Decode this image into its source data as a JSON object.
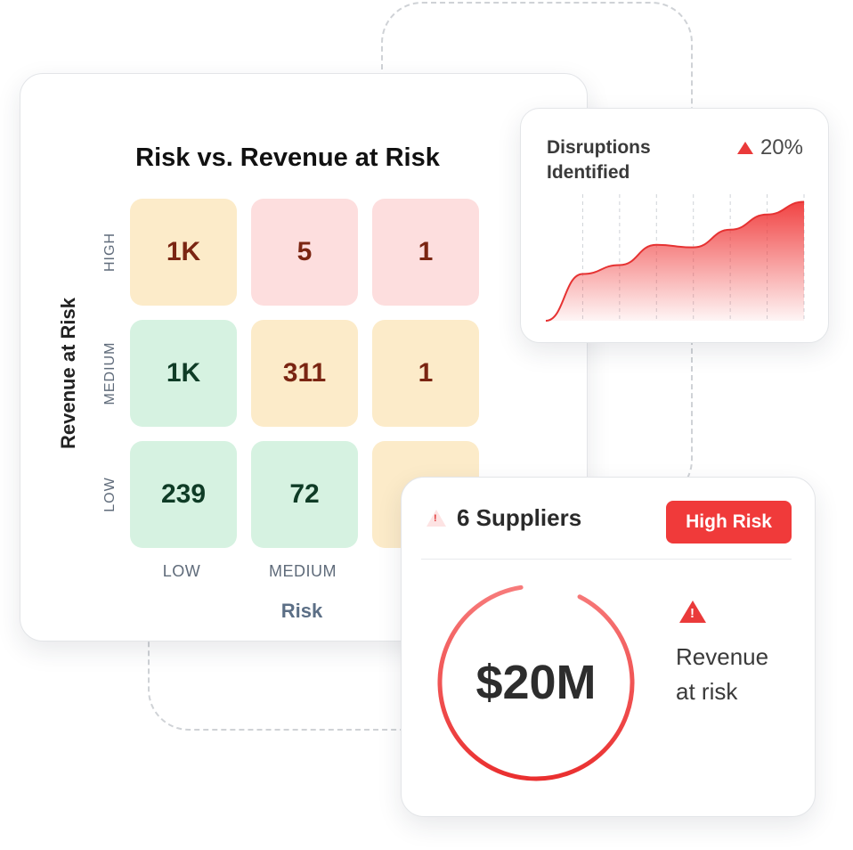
{
  "matrix": {
    "title": "Risk vs. Revenue at Risk",
    "y_axis_title": "Revenue at Risk",
    "x_axis_title": "Risk",
    "row_labels": [
      "HIGH",
      "MEDIUM",
      "LOW"
    ],
    "col_labels": [
      "LOW",
      "MEDIUM",
      ""
    ],
    "cells": [
      [
        "1K",
        "5",
        "1"
      ],
      [
        "1K",
        "311",
        "1"
      ],
      [
        "239",
        "72",
        ""
      ]
    ],
    "cell_colors": [
      [
        "yellow",
        "red",
        "red"
      ],
      [
        "green",
        "yellow",
        "yellow"
      ],
      [
        "green",
        "green",
        "yellow"
      ]
    ]
  },
  "disruptions": {
    "title": "Disruptions Identified",
    "change": "20%",
    "trend_icon": "triangle-up-icon",
    "trend_values": [
      0,
      0.37,
      0.44,
      0.6,
      0.58,
      0.72,
      0.84,
      0.94
    ]
  },
  "suppliers": {
    "title": "6 Suppliers",
    "badge": "High Risk",
    "value": "$20M",
    "revenue_label": "Revenue at risk",
    "ring_fill": 0.9,
    "alert_icon": "warning-icon"
  },
  "colors": {
    "accent_red": "#f03a3a",
    "cell_yellow": "#fcebc9",
    "cell_red": "#fddede",
    "cell_green": "#d6f2e1",
    "axis_label": "#5f6b7a"
  }
}
